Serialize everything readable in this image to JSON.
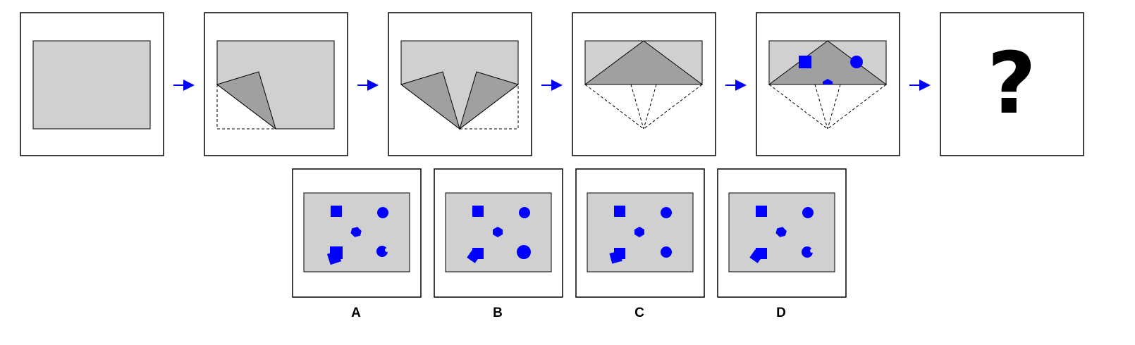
{
  "puzzle": {
    "question_mark": "?",
    "options": [
      {
        "label": "A"
      },
      {
        "label": "B"
      },
      {
        "label": "C"
      },
      {
        "label": "D"
      }
    ]
  },
  "colors": {
    "paper": "#d0d0d0",
    "folded_flap": "#a0a0a0",
    "shape": "#0000ff",
    "arrow": "#0000ff",
    "frame": "#000000"
  }
}
